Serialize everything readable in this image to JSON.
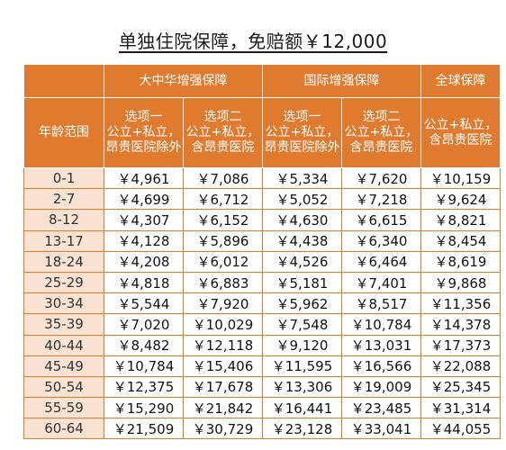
{
  "title": "单独住院保障，免赔额￥12,000",
  "header": {
    "plans": [
      "大中华增强保障",
      "国际增强保障",
      "全球保障"
    ],
    "age_label": "年龄范围",
    "options": [
      {
        "line1": "选项一",
        "line2": "公立+私立，",
        "line3": "昂贵医院除外"
      },
      {
        "line1": "选项二",
        "line2": "公立+私立，",
        "line3": "含昂贵医院"
      },
      {
        "line1": "选项一",
        "line2": "公立+私立，",
        "line3": "昂贵医院除外"
      },
      {
        "line1": "选项二",
        "line2": "公立+私立，",
        "line3": "含昂贵医院"
      },
      {
        "line1": "",
        "line2": "公立+私立，",
        "line3": "含昂贵医院"
      }
    ]
  },
  "rows": [
    {
      "age": "0-1",
      "v": [
        "￥4,961",
        "￥7,086",
        "￥5,334",
        "￥7,620",
        "￥10,159"
      ]
    },
    {
      "age": "2-7",
      "v": [
        "￥4,699",
        "￥6,712",
        "￥5,052",
        "￥7,218",
        "￥9,624"
      ]
    },
    {
      "age": "8-12",
      "v": [
        "￥4,307",
        "￥6,152",
        "￥4,630",
        "￥6,615",
        "￥8,821"
      ]
    },
    {
      "age": "13-17",
      "v": [
        "￥4,128",
        "￥5,896",
        "￥4,438",
        "￥6,340",
        "￥8,454"
      ]
    },
    {
      "age": "18-24",
      "v": [
        "￥4,208",
        "￥6,012",
        "￥4,526",
        "￥6,464",
        "￥8,619"
      ]
    },
    {
      "age": "25-29",
      "v": [
        "￥4,818",
        "￥6,883",
        "￥5,181",
        "￥7,401",
        "￥9,868"
      ]
    },
    {
      "age": "30-34",
      "v": [
        "￥5,544",
        "￥7,920",
        "￥5,962",
        "￥8,517",
        "￥11,356"
      ]
    },
    {
      "age": "35-39",
      "v": [
        "￥7,020",
        "￥10,029",
        "￥7,548",
        "￥10,784",
        "￥14,378"
      ]
    },
    {
      "age": "40-44",
      "v": [
        "￥8,482",
        "￥12,118",
        "￥9,120",
        "￥13,031",
        "￥17,373"
      ]
    },
    {
      "age": "45-49",
      "v": [
        "￥10,784",
        "￥15,406",
        "￥11,595",
        "￥16,566",
        "￥22,088"
      ]
    },
    {
      "age": "50-54",
      "v": [
        "￥12,375",
        "￥17,678",
        "￥13,306",
        "￥19,009",
        "￥25,345"
      ]
    },
    {
      "age": "55-59",
      "v": [
        "￥15,290",
        "￥21,842",
        "￥16,441",
        "￥23,485",
        "￥31,314"
      ]
    },
    {
      "age": "60-64",
      "v": [
        "￥21,509",
        "￥30,729",
        "￥23,128",
        "￥33,041",
        "￥44,055"
      ]
    }
  ]
}
